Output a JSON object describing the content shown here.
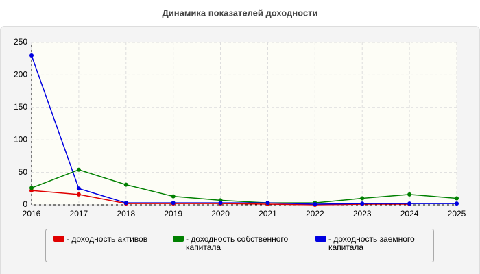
{
  "chart_data": {
    "type": "line",
    "title": "Динамика показателей доходности",
    "x": [
      2016,
      2017,
      2018,
      2019,
      2020,
      2021,
      2022,
      2023,
      2024,
      2025
    ],
    "xlim": [
      2016,
      2025
    ],
    "xticks": [
      2016,
      2017,
      2018,
      2019,
      2020,
      2021,
      2022,
      2023,
      2024,
      2025
    ],
    "ylim": [
      0,
      250
    ],
    "yticks": [
      0,
      50,
      100,
      150,
      200,
      250
    ],
    "grid": true,
    "series": [
      {
        "name": "- доходность активов",
        "color": "#e00000",
        "values": [
          22,
          16,
          2,
          2,
          2,
          1,
          0,
          1,
          1,
          null
        ]
      },
      {
        "name": "- доходность собственного капитала",
        "color": "#008000",
        "values": [
          26,
          54,
          31,
          13,
          7,
          3,
          3,
          10,
          16,
          10
        ]
      },
      {
        "name": "- доходность заемного капитала",
        "color": "#0000e0",
        "values": [
          230,
          25,
          3,
          3,
          3,
          3,
          1,
          2,
          2,
          2
        ]
      }
    ]
  }
}
